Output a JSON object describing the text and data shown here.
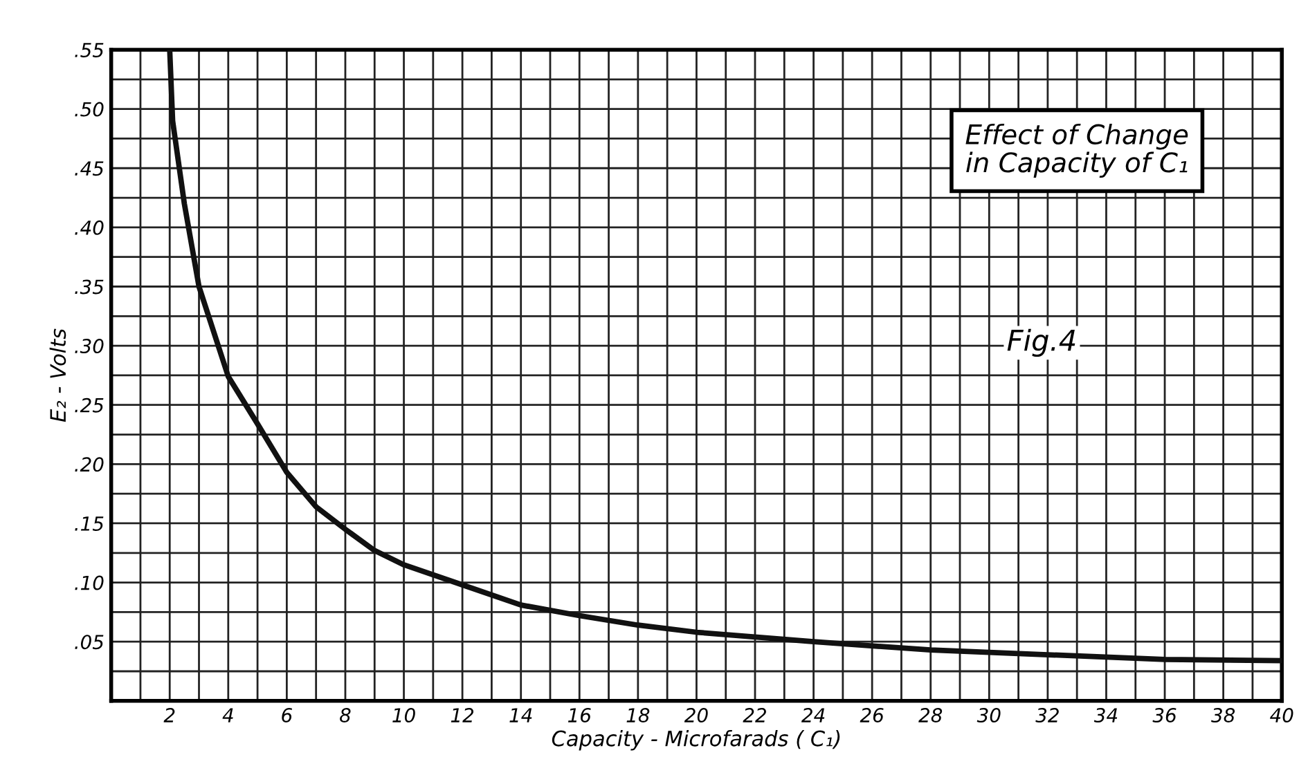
{
  "chart_data": {
    "type": "line",
    "title": "Effect of Change\nin Capacity of C₁",
    "xlabel": "Capacity - Microfarads ( C₁)",
    "ylabel": "E₂ - Volts",
    "annotations": [
      "Fig.4"
    ],
    "x": [
      2,
      2.1,
      2.5,
      3,
      4,
      5,
      6,
      7,
      8,
      9,
      10,
      12,
      14,
      16,
      18,
      20,
      24,
      28,
      32,
      36,
      40
    ],
    "series": [
      {
        "color": "#111111",
        "values": [
          0.55,
          0.49,
          0.42,
          0.35,
          0.274,
          0.234,
          0.193,
          0.164,
          0.145,
          0.127,
          0.115,
          0.098,
          0.081,
          0.072,
          0.064,
          0.058,
          0.05,
          0.043,
          0.039,
          0.035,
          0.034
        ]
      }
    ],
    "xlim": [
      0,
      40
    ],
    "ylim": [
      0,
      0.55
    ],
    "xticks": [
      {
        "value": 1,
        "label": null
      },
      2,
      {
        "value": 3,
        "label": null
      },
      4,
      {
        "value": 5,
        "label": null
      },
      6,
      {
        "value": 7,
        "label": null
      },
      8,
      {
        "value": 9,
        "label": null
      },
      10,
      {
        "value": 11,
        "label": null
      },
      12,
      {
        "value": 13,
        "label": null
      },
      14,
      {
        "value": 15,
        "label": null
      },
      16,
      {
        "value": 17,
        "label": null
      },
      18,
      {
        "value": 19,
        "label": null
      },
      20,
      {
        "value": 21,
        "label": null
      },
      22,
      {
        "value": 23,
        "label": null
      },
      24,
      {
        "value": 25,
        "label": null
      },
      26,
      {
        "value": 27,
        "label": null
      },
      28,
      {
        "value": 29,
        "label": null
      },
      30,
      {
        "value": 31,
        "label": null
      },
      32,
      {
        "value": 33,
        "label": null
      },
      34,
      {
        "value": 35,
        "label": null
      },
      36,
      {
        "value": 37,
        "label": null
      },
      38,
      {
        "value": 39,
        "label": null
      },
      40
    ],
    "yticks": [
      {
        "value": 0.025,
        "label": null
      },
      {
        "value": 0.05,
        "label": ".05"
      },
      {
        "value": 0.075,
        "label": null
      },
      {
        "value": 0.1,
        "label": ".10"
      },
      {
        "value": 0.125,
        "label": null
      },
      {
        "value": 0.15,
        "label": ".15"
      },
      {
        "value": 0.175,
        "label": null
      },
      {
        "value": 0.2,
        "label": ".20"
      },
      {
        "value": 0.225,
        "label": null
      },
      {
        "value": 0.25,
        "label": ".25"
      },
      {
        "value": 0.275,
        "label": null
      },
      {
        "value": 0.3,
        "label": ".30"
      },
      {
        "value": 0.325,
        "label": null
      },
      {
        "value": 0.35,
        "label": ".35"
      },
      {
        "value": 0.375,
        "label": null
      },
      {
        "value": 0.4,
        "label": ".40"
      },
      {
        "value": 0.425,
        "label": null
      },
      {
        "value": 0.45,
        "label": ".45"
      },
      {
        "value": 0.475,
        "label": null
      },
      {
        "value": 0.5,
        "label": ".50"
      },
      {
        "value": 0.525,
        "label": null
      },
      {
        "value": 0.55,
        "label": ".55"
      }
    ],
    "grid": true,
    "marker": "none",
    "line_style": "solid"
  }
}
